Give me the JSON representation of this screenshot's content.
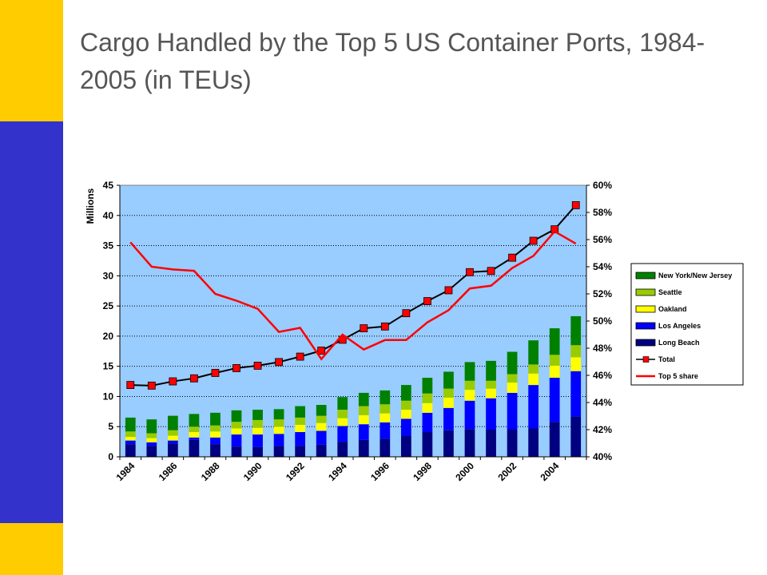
{
  "slide": {
    "title": "Cargo Handled by the Top 5 US Container Ports, 1984-2005 (in TEUs)"
  },
  "colors": {
    "frame_yellow": "#FFCC00",
    "frame_blue": "#3333CC",
    "plot_bg": "#99CCFF",
    "long_beach": "#000080",
    "los_angeles": "#0000FF",
    "oakland": "#FFFF00",
    "seattle": "#99CC00",
    "ny_nj": "#008000",
    "total_line": "#000000",
    "total_marker": "#FF0000",
    "share_line": "#FF0000"
  },
  "chart_data": {
    "type": "bar",
    "stacked": true,
    "title": "",
    "ylabel": "Millions",
    "ylim": [
      0,
      45
    ],
    "y_ticks": [
      0,
      5,
      10,
      15,
      20,
      25,
      30,
      35,
      40,
      45
    ],
    "y2lim": [
      40,
      60
    ],
    "y2_ticks": [
      "40%",
      "42%",
      "44%",
      "46%",
      "48%",
      "50%",
      "52%",
      "54%",
      "56%",
      "58%",
      "60%"
    ],
    "x_tick_labels": [
      "1984",
      "1986",
      "1988",
      "1990",
      "1992",
      "1994",
      "1996",
      "1998",
      "2000",
      "2002",
      "2004"
    ],
    "categories": [
      "1984",
      "1985",
      "1986",
      "1987",
      "1988",
      "1989",
      "1990",
      "1991",
      "1992",
      "1993",
      "1994",
      "1995",
      "1996",
      "1997",
      "1998",
      "1999",
      "2000",
      "2001",
      "2002",
      "2003",
      "2004",
      "2005"
    ],
    "grid": "horizontal dotted",
    "legend_position": "right",
    "series": [
      {
        "name": "Long Beach",
        "type": "bar",
        "values": [
          2.1,
          1.8,
          2.2,
          2.8,
          2.1,
          1.7,
          1.6,
          1.8,
          1.8,
          2.0,
          2.5,
          2.8,
          3.0,
          3.5,
          4.1,
          4.4,
          4.6,
          4.5,
          4.5,
          4.7,
          5.8,
          6.7
        ]
      },
      {
        "name": "Los Angeles",
        "type": "bar",
        "values": [
          0.6,
          0.6,
          0.5,
          0.4,
          1.1,
          2.0,
          2.1,
          2.0,
          2.3,
          2.3,
          2.6,
          2.6,
          2.7,
          2.8,
          3.2,
          3.7,
          4.7,
          5.2,
          6.1,
          7.2,
          7.3,
          7.5
        ]
      },
      {
        "name": "Oakland",
        "type": "bar",
        "values": [
          0.6,
          0.7,
          0.8,
          0.9,
          1.0,
          1.0,
          1.1,
          1.2,
          1.2,
          1.3,
          1.3,
          1.5,
          1.5,
          1.5,
          1.6,
          1.7,
          1.8,
          1.6,
          1.7,
          1.9,
          2.0,
          2.3
        ]
      },
      {
        "name": "Seattle",
        "type": "bar",
        "values": [
          0.9,
          0.8,
          0.9,
          0.9,
          1.0,
          1.1,
          1.3,
          1.2,
          1.2,
          1.2,
          1.4,
          1.5,
          1.5,
          1.5,
          1.6,
          1.5,
          1.5,
          1.3,
          1.4,
          1.5,
          1.8,
          2.0
        ]
      },
      {
        "name": "New York/New Jersey",
        "type": "bar",
        "values": [
          2.3,
          2.3,
          2.4,
          2.1,
          2.1,
          1.9,
          1.7,
          1.7,
          1.9,
          1.8,
          2.1,
          2.2,
          2.3,
          2.6,
          2.6,
          2.8,
          3.1,
          3.3,
          3.7,
          4.0,
          4.4,
          4.8
        ]
      },
      {
        "name": "Total",
        "type": "line",
        "values": [
          11.9,
          11.8,
          12.5,
          13.0,
          13.9,
          14.7,
          15.1,
          15.7,
          16.6,
          17.6,
          19.4,
          21.3,
          21.6,
          23.8,
          25.8,
          27.6,
          30.6,
          30.8,
          33.0,
          35.8,
          37.7,
          41.7
        ]
      },
      {
        "name": "Top 5 share",
        "type": "line",
        "axis": "secondary",
        "unit": "%",
        "values": [
          55.8,
          54.0,
          53.8,
          53.7,
          52.0,
          51.5,
          50.9,
          49.2,
          49.5,
          47.2,
          49.0,
          47.9,
          48.6,
          48.6,
          49.9,
          50.8,
          52.4,
          52.6,
          53.9,
          54.8,
          56.6,
          55.7
        ]
      }
    ]
  }
}
